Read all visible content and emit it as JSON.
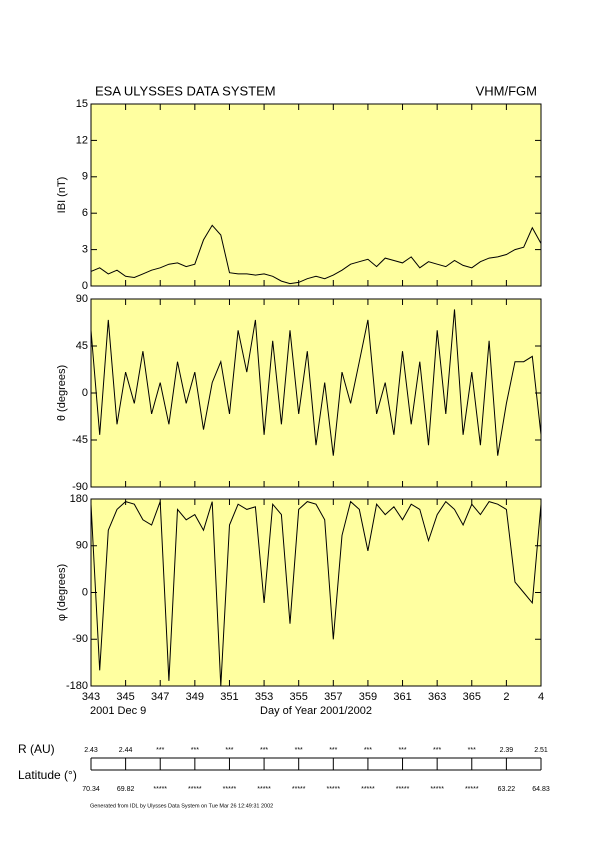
{
  "header": {
    "title": "ESA ULYSSES DATA SYSTEM",
    "instrument": "VHM/FGM"
  },
  "chart_data": [
    {
      "type": "line",
      "ylabel": "IBI (nT)",
      "background": "#ffffa0",
      "color": "#000000",
      "x": [
        343,
        343.5,
        344,
        344.5,
        345,
        345.5,
        346,
        346.5,
        347,
        347.5,
        348,
        348.5,
        349,
        349.5,
        350,
        350.5,
        351,
        351.5,
        352,
        352.5,
        353,
        353.5,
        354,
        354.5,
        355,
        355.5,
        356,
        356.5,
        357,
        357.5,
        358,
        358.5,
        359,
        359.5,
        360,
        360.5,
        361,
        361.5,
        362,
        362.5,
        363,
        363.5,
        364,
        364.5,
        365,
        365.5,
        366,
        366.5,
        367,
        367.5,
        368,
        368.5,
        369
      ],
      "values": [
        1.2,
        1.5,
        1.0,
        1.3,
        0.8,
        0.7,
        1.0,
        1.3,
        1.5,
        1.8,
        1.9,
        1.6,
        1.8,
        3.8,
        5.0,
        4.2,
        1.1,
        1.0,
        1.0,
        0.9,
        1.0,
        0.8,
        0.4,
        0.2,
        0.3,
        0.6,
        0.8,
        0.6,
        0.9,
        1.3,
        1.8,
        2.0,
        2.2,
        1.6,
        2.3,
        2.1,
        1.9,
        2.4,
        1.5,
        2.0,
        1.8,
        1.6,
        2.1,
        1.7,
        1.5,
        2.0,
        2.3,
        2.4,
        2.6,
        3.0,
        3.2,
        4.8,
        3.5
      ],
      "xlim": [
        343,
        369
      ],
      "xticks": [
        343,
        345,
        347,
        349,
        351,
        353,
        355,
        357,
        359,
        361,
        363,
        365,
        367,
        369
      ],
      "ylim": [
        0,
        15
      ],
      "yticks": [
        0,
        3,
        6,
        9,
        12,
        15
      ]
    },
    {
      "type": "line",
      "ylabel": "θ (degrees)",
      "background": "#ffffa0",
      "color": "#000000",
      "x": [
        343,
        343.5,
        344,
        344.5,
        345,
        345.5,
        346,
        346.5,
        347,
        347.5,
        348,
        348.5,
        349,
        349.5,
        350,
        350.5,
        351,
        351.5,
        352,
        352.5,
        353,
        353.5,
        354,
        354.5,
        355,
        355.5,
        356,
        356.5,
        357,
        357.5,
        358,
        358.5,
        359,
        359.5,
        360,
        360.5,
        361,
        361.5,
        362,
        362.5,
        363,
        363.5,
        364,
        364.5,
        365,
        365.5,
        366,
        366.5,
        367,
        367.5,
        368,
        368.5,
        369
      ],
      "values": [
        60,
        -40,
        70,
        -30,
        20,
        -10,
        40,
        -20,
        10,
        -30,
        30,
        -10,
        20,
        -35,
        10,
        30,
        -20,
        60,
        20,
        70,
        -40,
        50,
        -30,
        60,
        -20,
        40,
        -50,
        10,
        -60,
        20,
        -10,
        30,
        70,
        -20,
        10,
        -40,
        40,
        -30,
        30,
        -50,
        60,
        -20,
        80,
        -40,
        20,
        -50,
        50,
        -60,
        -10,
        30,
        30,
        35,
        -40
      ],
      "xlim": [
        343,
        369
      ],
      "xticks": [
        343,
        345,
        347,
        349,
        351,
        353,
        355,
        357,
        359,
        361,
        363,
        365,
        367,
        369
      ],
      "ylim": [
        -90,
        90
      ],
      "yticks": [
        -90,
        -45,
        0,
        45,
        90
      ]
    },
    {
      "type": "line",
      "ylabel": "φ (degrees)",
      "background": "#ffffa0",
      "color": "#000000",
      "x": [
        343,
        343.5,
        344,
        344.5,
        345,
        345.5,
        346,
        346.5,
        347,
        347.5,
        348,
        348.5,
        349,
        349.5,
        350,
        350.5,
        351,
        351.5,
        352,
        352.5,
        353,
        353.5,
        354,
        354.5,
        355,
        355.5,
        356,
        356.5,
        357,
        357.5,
        358,
        358.5,
        359,
        359.5,
        360,
        360.5,
        361,
        361.5,
        362,
        362.5,
        363,
        363.5,
        364,
        364.5,
        365,
        365.5,
        366,
        366.5,
        367,
        367.5,
        368,
        368.5,
        369
      ],
      "values": [
        170,
        -150,
        120,
        160,
        175,
        170,
        140,
        130,
        175,
        -170,
        160,
        140,
        150,
        120,
        175,
        -180,
        130,
        170,
        160,
        165,
        -20,
        170,
        150,
        -60,
        160,
        175,
        170,
        140,
        -90,
        110,
        175,
        160,
        80,
        170,
        150,
        165,
        140,
        170,
        160,
        100,
        150,
        175,
        160,
        130,
        170,
        150,
        175,
        170,
        160,
        20,
        0,
        -20,
        170
      ],
      "xlim": [
        343,
        369
      ],
      "xticks": [
        343,
        345,
        347,
        349,
        351,
        353,
        355,
        357,
        359,
        361,
        363,
        365,
        {
          "value": 367,
          "label": "2"
        },
        {
          "value": 369,
          "label": "4"
        }
      ],
      "ylim": [
        -180,
        180
      ],
      "yticks": [
        -180,
        -90,
        0,
        90,
        180
      ],
      "date": "2001 Dec  9",
      "xlabel": "Day of Year 2001/2002"
    }
  ],
  "ephemeris": {
    "r_label": "R (AU)",
    "r_values": [
      "2.43",
      "2.44",
      "***",
      "***",
      "***",
      "***",
      "***",
      "***",
      "***",
      "***",
      "***",
      "***",
      "2.39",
      "2.51"
    ],
    "lat_label": "Latitude (°)",
    "lat_values": [
      "70.34",
      "69.82",
      "*****",
      "*****",
      "*****",
      "*****",
      "*****",
      "*****",
      "*****",
      "*****",
      "*****",
      "*****",
      "63.22",
      "64.83"
    ]
  },
  "footer": "Generated from IDL by Ulysses Data System on Tue Mar 26 12:49:31 2002"
}
